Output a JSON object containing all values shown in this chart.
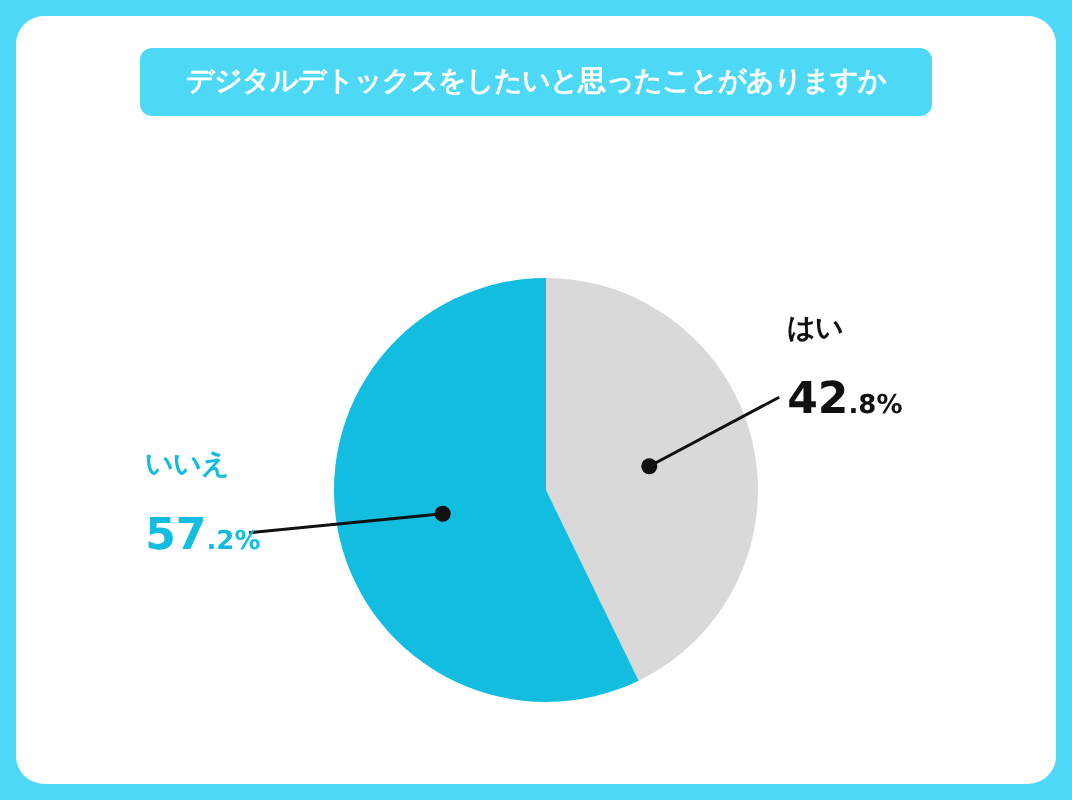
{
  "chart_data": {
    "type": "pie",
    "title": "デジタルデトックスをしたいと思ったことがありますか",
    "categories": [
      "はい",
      "いいえ"
    ],
    "values": [
      42.8,
      57.2
    ],
    "value_labels": [
      "42.8%",
      "57.2%"
    ],
    "colors": [
      "#d9d9d9",
      "#12bde0"
    ]
  }
}
